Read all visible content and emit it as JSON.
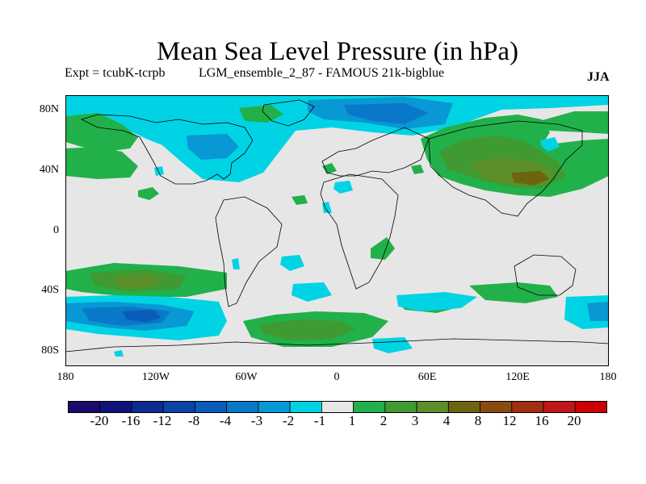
{
  "title": "Mean Sea Level Pressure (in hPa)",
  "expt_label": "Expt = tcubK-tcrpb",
  "description": "LGM_ensemble_2_87 - FAMOUS 21k-bigblue",
  "season": "JJA",
  "lat_labels": [
    "80N",
    "40N",
    "0",
    "40S",
    "80S"
  ],
  "lon_labels": [
    "180",
    "120W",
    "60W",
    "0",
    "60E",
    "120E",
    "180"
  ],
  "colorbar": {
    "labels": [
      "-20",
      "-16",
      "-12",
      "-8",
      "-4",
      "-3",
      "-2",
      "-1",
      "1",
      "2",
      "3",
      "4",
      "8",
      "12",
      "16",
      "20"
    ],
    "colors": [
      "#1a0a6b",
      "#10147a",
      "#0c2c92",
      "#0a44a8",
      "#0b5cb8",
      "#0a78c8",
      "#0898d4",
      "#00d4e4",
      "#e6e6e6",
      "#22b04a",
      "#3f9a32",
      "#5c8e2a",
      "#6e6410",
      "#8a4a10",
      "#a03010",
      "#c01818",
      "#cc0000"
    ]
  },
  "colors": {
    "neutral": "#e6e6e6",
    "pos1": "#22b04a",
    "pos2": "#3f9a32",
    "pos3": "#5c8e2a",
    "pos4": "#6e6410",
    "neg1": "#00d4e4",
    "neg2": "#0898d4",
    "neg3": "#0a78c8",
    "neg4": "#0b5cb8"
  }
}
